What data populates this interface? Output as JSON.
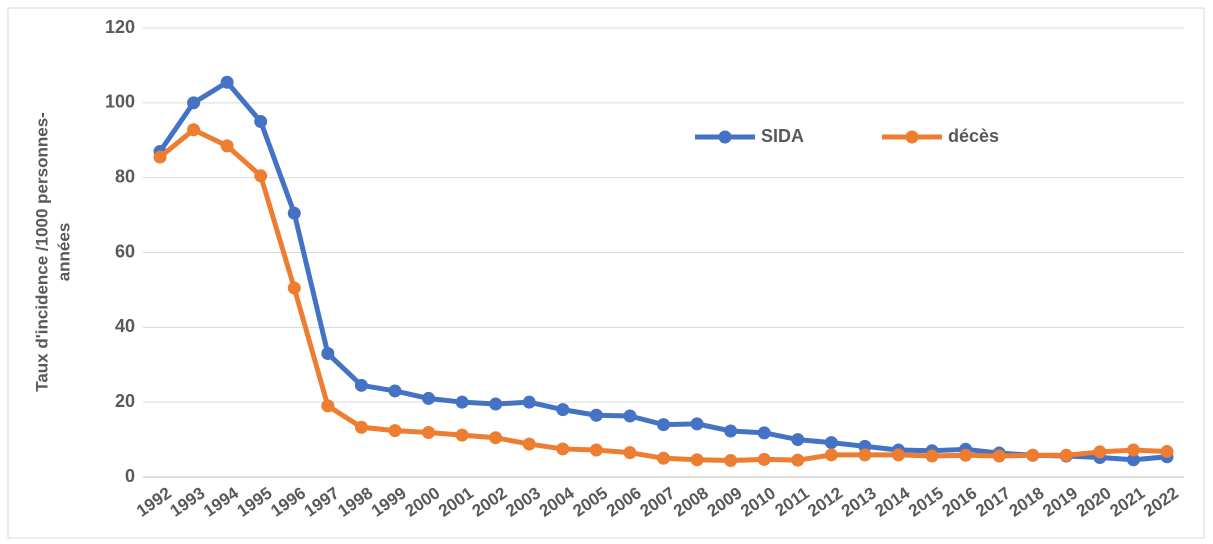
{
  "chart_data": {
    "type": "line",
    "ylabel": [
      "Taux d'incidence /1000 personnes-",
      "années"
    ],
    "categories": [
      "1992",
      "1993",
      "1994",
      "1995",
      "1996",
      "1997",
      "1998",
      "1999",
      "2000",
      "2001",
      "2002",
      "2003",
      "2004",
      "2005",
      "2006",
      "2007",
      "2008",
      "2009",
      "2010",
      "2011",
      "2012",
      "2013",
      "2014",
      "2015",
      "2016",
      "2017",
      "2018",
      "2019",
      "2020",
      "2021",
      "2022"
    ],
    "series": [
      {
        "name": "SIDA",
        "color": "#4472c4",
        "values": [
          87,
          100,
          105.5,
          95,
          70.5,
          33,
          24.5,
          23,
          21,
          20,
          19.5,
          20,
          18,
          16.5,
          16.3,
          14,
          14.2,
          12.3,
          11.8,
          10,
          9.2,
          8.2,
          7.2,
          7,
          7.4,
          6.4,
          5.8,
          5.6,
          5.2,
          4.6,
          5.4
        ]
      },
      {
        "name": "décès",
        "color": "#ed7d31",
        "values": [
          85.5,
          92.8,
          88.5,
          80.5,
          50.5,
          19,
          13.3,
          12.4,
          11.9,
          11.2,
          10.5,
          8.8,
          7.5,
          7.2,
          6.5,
          5,
          4.6,
          4.4,
          4.7,
          4.5,
          5.9,
          5.9,
          5.9,
          5.6,
          5.8,
          5.6,
          5.8,
          5.8,
          6.7,
          7.2,
          6.8
        ]
      }
    ],
    "ylim": [
      0,
      120
    ],
    "yticks": [
      0,
      20,
      40,
      60,
      80,
      100,
      120
    ],
    "grid": true
  }
}
